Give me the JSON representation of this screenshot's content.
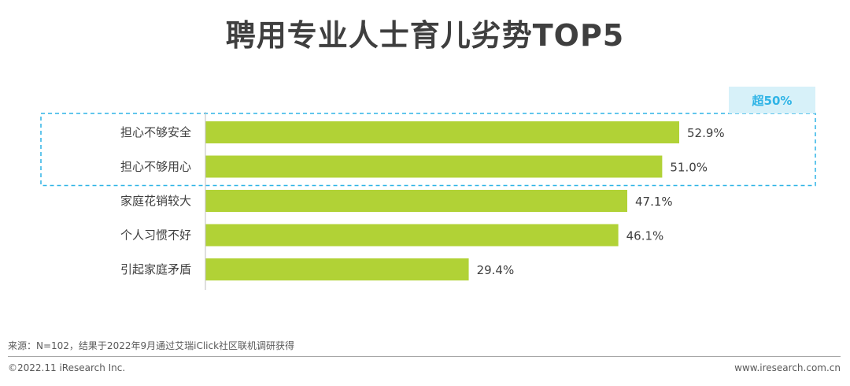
{
  "title": "聘用专业人士育儿劣势TOP5",
  "chart_data": {
    "type": "bar",
    "orientation": "horizontal",
    "categories": [
      "担心不够安全",
      "担心不够用心",
      "家庭花销较大",
      "个人习惯不好",
      "引起家庭矛盾"
    ],
    "values": [
      52.9,
      51.0,
      47.1,
      46.1,
      29.4
    ],
    "value_labels": [
      "52.9%",
      "51.0%",
      "47.1%",
      "46.1%",
      "29.4%"
    ],
    "title": "聘用专业人士育儿劣势TOP5",
    "xlabel": "",
    "ylabel": "",
    "bar_color": "#b1d236",
    "annotation": {
      "label": "超50%",
      "covers_categories": [
        "担心不够安全",
        "担心不够用心"
      ],
      "box_color": "#2fb4e6",
      "label_bg": "#d7f1f9"
    }
  },
  "source": "来源：N=102，结果于2022年9月通过艾瑞iClick社区联机调研获得",
  "copyright": "©2022.11 iResearch Inc.",
  "website": "www.iresearch.com.cn"
}
